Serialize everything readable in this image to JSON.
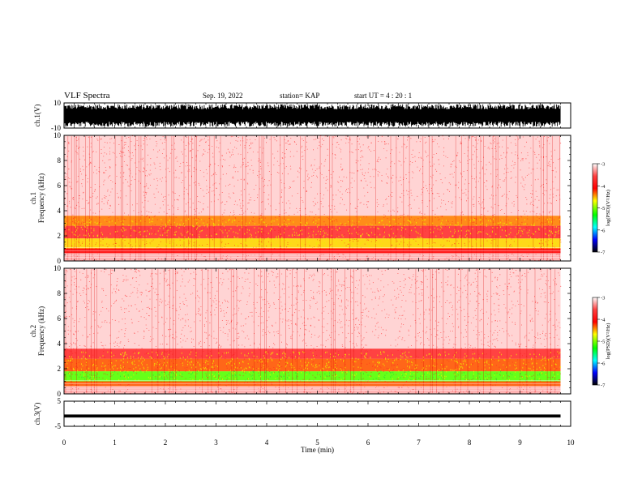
{
  "header": {
    "title": "VLF Spectra",
    "date": "Sep. 19, 2022",
    "station": "station= KAP",
    "start_ut": "start  UT =   4 : 20 : 1"
  },
  "chart_data": [
    {
      "type": "line",
      "panel": "ch1-waveform",
      "ylabel": "ch.1(V)",
      "ylim": [
        -10,
        10
      ],
      "y_ticks": [
        "10",
        "-10"
      ],
      "x_unit": "min",
      "xlim": [
        0,
        10
      ],
      "data_end_min": 9.8,
      "description_values": {
        "typical_amplitude_range_V": [
          -9,
          9
        ]
      }
    },
    {
      "type": "heatmap",
      "panel": "ch1-spectrogram",
      "ylabel": "ch.1\nFrequency  (kHz)",
      "ylim": [
        0,
        10
      ],
      "y_ticks": [
        "0",
        "2",
        "4",
        "6",
        "8",
        "10"
      ],
      "xlim": [
        0,
        10
      ],
      "data_end_min": 9.8,
      "bands_kHz": [
        {
          "from": 0.0,
          "to": 0.6,
          "level": -3.2
        },
        {
          "from": 0.6,
          "to": 1.0,
          "level": -3.8
        },
        {
          "from": 1.0,
          "to": 1.8,
          "level": -4.3
        },
        {
          "from": 1.8,
          "to": 2.8,
          "level": -3.6
        },
        {
          "from": 2.8,
          "to": 3.6,
          "level": -4.1
        },
        {
          "from": 3.6,
          "to": 10.0,
          "level": -3.3
        }
      ],
      "colorbar": {
        "label": "log(PSD)(V²/Hz)",
        "range": [
          -7,
          -3
        ],
        "ticks": [
          "-3",
          "-4",
          "-5",
          "-6",
          "-7"
        ]
      }
    },
    {
      "type": "heatmap",
      "panel": "ch2-spectrogram",
      "ylabel": "ch.2\nFrequency  (kHz)",
      "ylim": [
        0,
        10
      ],
      "y_ticks": [
        "0",
        "2",
        "4",
        "6",
        "8",
        "10"
      ],
      "xlim": [
        0,
        10
      ],
      "data_end_min": 9.8,
      "bands_kHz": [
        {
          "from": 0.0,
          "to": 0.6,
          "level": -3.2
        },
        {
          "from": 0.6,
          "to": 1.0,
          "level": -4.0
        },
        {
          "from": 1.0,
          "to": 1.8,
          "level": -4.8
        },
        {
          "from": 1.8,
          "to": 2.8,
          "level": -4.0
        },
        {
          "from": 2.8,
          "to": 3.6,
          "level": -3.6
        },
        {
          "from": 3.6,
          "to": 10.0,
          "level": -3.3
        }
      ],
      "colorbar": {
        "label": "log(PSD)(V²/Hz)",
        "range": [
          -7,
          -3
        ],
        "ticks": [
          "-3",
          "-4",
          "-5",
          "-6",
          "-7"
        ]
      }
    },
    {
      "type": "line",
      "panel": "ch3-waveform",
      "ylabel": "ch.3(V)",
      "ylim": [
        -5,
        5
      ],
      "y_ticks": [
        "5",
        "-5"
      ],
      "xlim": [
        0,
        10
      ],
      "data_end_min": 9.8,
      "description_values": {
        "mean_V": -0.9,
        "half_width_V": 0.6
      }
    }
  ],
  "x_axis": {
    "label": "Time  (min)",
    "ticks": [
      "0",
      "1",
      "2",
      "3",
      "4",
      "5",
      "6",
      "7",
      "8",
      "9",
      "10"
    ]
  },
  "colors": {
    "frame": "#000000",
    "background": "#ffffff",
    "colormap": [
      "#000000",
      "#0000ff",
      "#00ffff",
      "#00ff00",
      "#ffff00",
      "#ff0000",
      "#ffffff"
    ]
  }
}
